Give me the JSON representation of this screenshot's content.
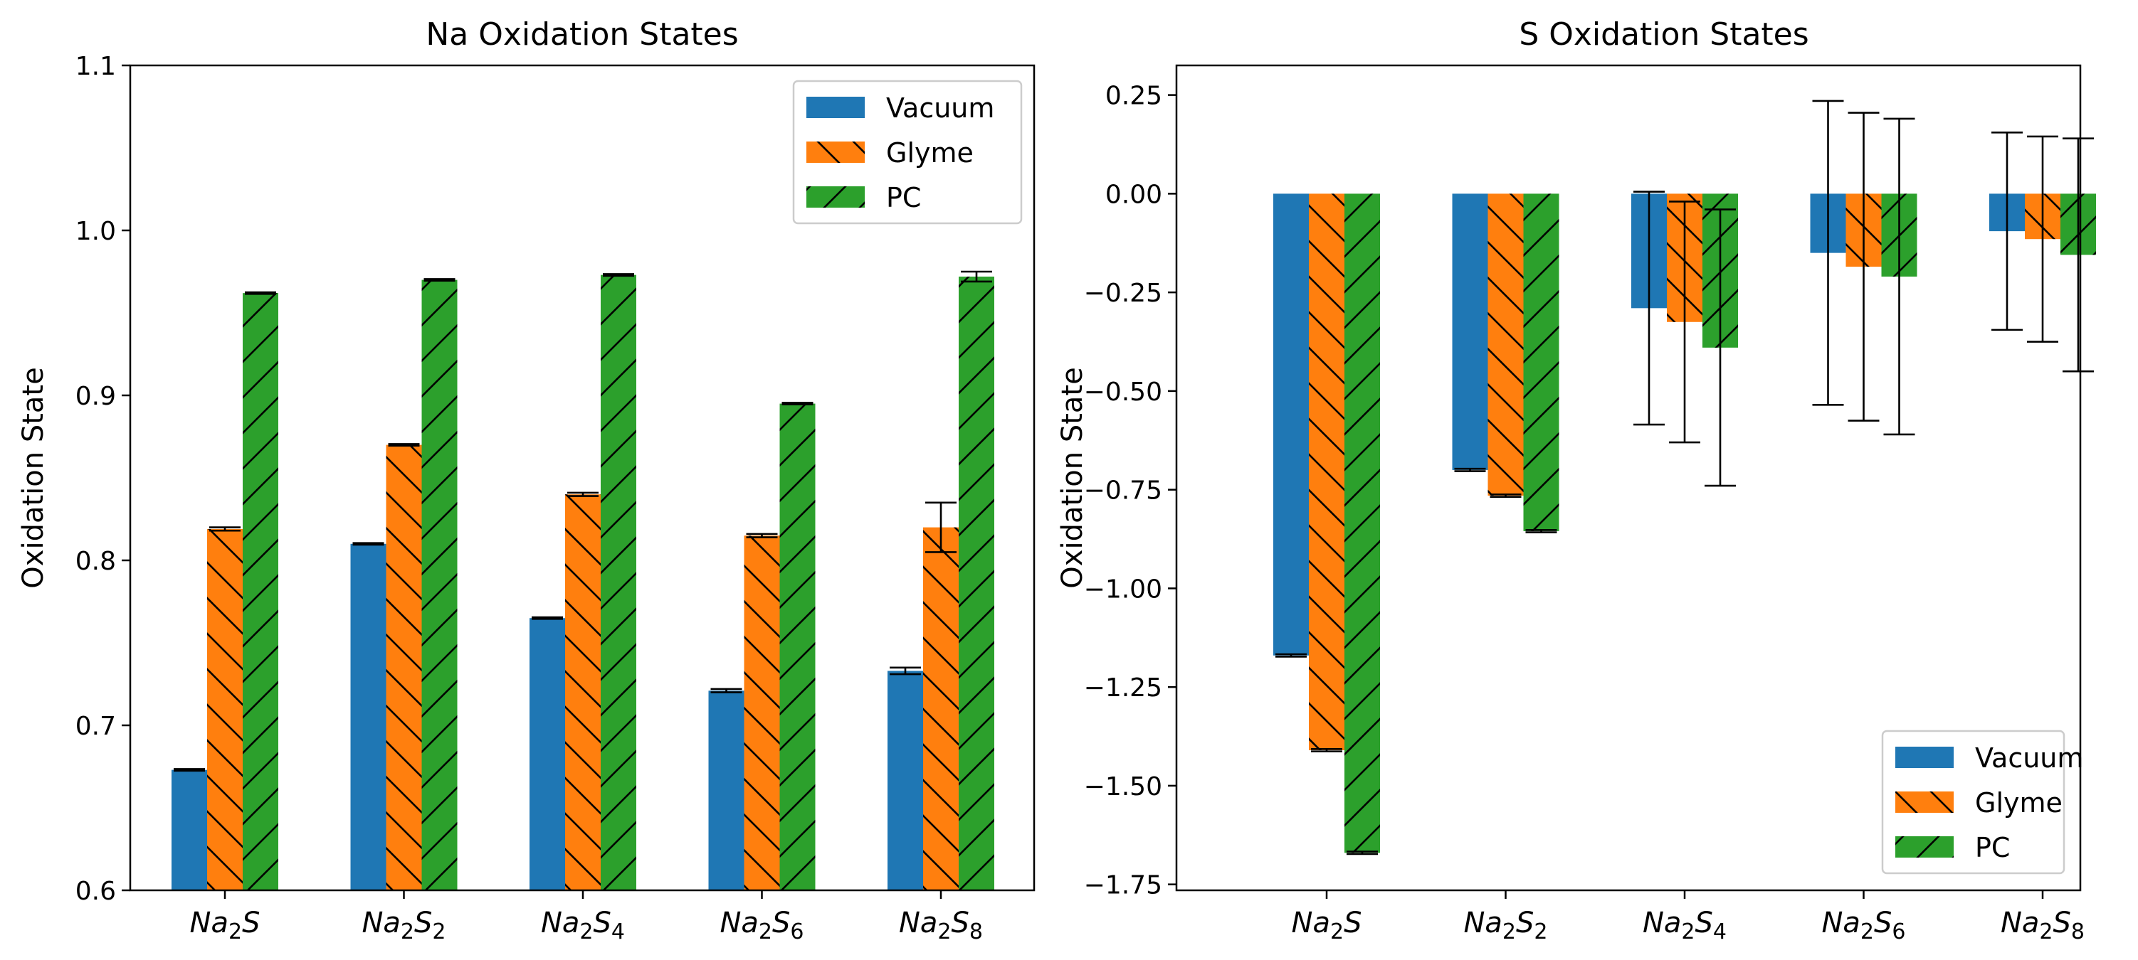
{
  "colors": {
    "Vacuum": "#1f77b4",
    "Glyme": "#ff7f0e",
    "PC": "#2ca02c"
  },
  "chart_data": [
    {
      "type": "bar",
      "title": "Na Oxidation States",
      "xlabel": "",
      "ylabel": "Oxidation State",
      "categories": [
        {
          "base": "Na",
          "sub1": "2",
          "mid": "S",
          "sub2": ""
        },
        {
          "base": "Na",
          "sub1": "2",
          "mid": "S",
          "sub2": "2"
        },
        {
          "base": "Na",
          "sub1": "2",
          "mid": "S",
          "sub2": "4"
        },
        {
          "base": "Na",
          "sub1": "2",
          "mid": "S",
          "sub2": "6"
        },
        {
          "base": "Na",
          "sub1": "2",
          "mid": "S",
          "sub2": "8"
        }
      ],
      "ylim": [
        0.6,
        1.1
      ],
      "yticks": [
        "0.6",
        "0.7",
        "0.8",
        "0.9",
        "1.0",
        "1.1"
      ],
      "ytick_values": [
        0.6,
        0.7,
        0.8,
        0.9,
        1.0,
        1.1
      ],
      "grid": false,
      "legend_position": "top-right",
      "series": [
        {
          "name": "Vacuum",
          "hatch": "none",
          "values": [
            0.673,
            0.81,
            0.765,
            0.721,
            0.733
          ],
          "errors": [
            0.0005,
            0.0005,
            0.0005,
            0.001,
            0.002
          ]
        },
        {
          "name": "Glyme",
          "hatch": "backslash",
          "values": [
            0.819,
            0.87,
            0.84,
            0.815,
            0.82
          ],
          "errors": [
            0.001,
            0.0005,
            0.001,
            0.001,
            0.015
          ]
        },
        {
          "name": "PC",
          "hatch": "slash",
          "values": [
            0.962,
            0.97,
            0.973,
            0.895,
            0.972
          ],
          "errors": [
            0.0005,
            0.0005,
            0.0005,
            0.0005,
            0.003
          ]
        }
      ]
    },
    {
      "type": "bar",
      "title": "S Oxidation States",
      "xlabel": "",
      "ylabel": "Oxidation State",
      "categories": [
        {
          "base": "Na",
          "sub1": "2",
          "mid": "S",
          "sub2": ""
        },
        {
          "base": "Na",
          "sub1": "2",
          "mid": "S",
          "sub2": "2"
        },
        {
          "base": "Na",
          "sub1": "2",
          "mid": "S",
          "sub2": "4"
        },
        {
          "base": "Na",
          "sub1": "2",
          "mid": "S",
          "sub2": "6"
        },
        {
          "base": "Na",
          "sub1": "2",
          "mid": "S",
          "sub2": "8"
        }
      ],
      "ylim": [
        -1.765,
        0.325
      ],
      "yticks": [
        "0.25",
        "0.00",
        "−0.25",
        "−0.50",
        "−0.75",
        "−1.00",
        "−1.25",
        "−1.50",
        "−1.75"
      ],
      "ytick_values": [
        0.25,
        0.0,
        -0.25,
        -0.5,
        -0.75,
        -1.0,
        -1.25,
        -1.5,
        -1.75
      ],
      "grid": false,
      "legend_position": "bottom-right",
      "series": [
        {
          "name": "Vacuum",
          "hatch": "none",
          "values": [
            -1.17,
            -0.7,
            -0.29,
            -0.15,
            -0.095
          ],
          "errors": [
            0.003,
            0.003,
            0.295,
            0.385,
            0.25
          ]
        },
        {
          "name": "Glyme",
          "hatch": "backslash",
          "values": [
            -1.41,
            -0.765,
            -0.325,
            -0.185,
            -0.115
          ],
          "errors": [
            0.003,
            0.003,
            0.305,
            0.39,
            0.26
          ]
        },
        {
          "name": "PC",
          "hatch": "slash",
          "values": [
            -1.67,
            -0.855,
            -0.39,
            -0.21,
            -0.155
          ],
          "errors": [
            0.003,
            0.003,
            0.35,
            0.4,
            0.295
          ]
        }
      ]
    }
  ]
}
